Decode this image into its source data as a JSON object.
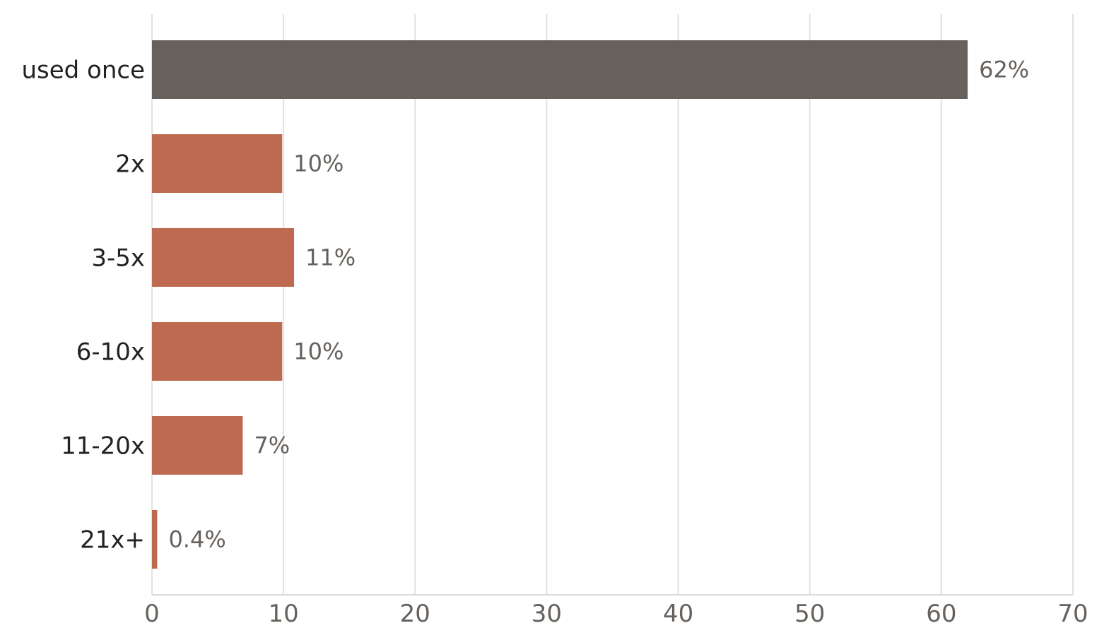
{
  "chart_data": {
    "type": "bar",
    "orientation": "horizontal",
    "title": "",
    "xlabel": "",
    "ylabel": "",
    "categories": [
      "used once",
      "2x",
      "3-5x",
      "6-10x",
      "11-20x",
      "21x+"
    ],
    "values": [
      62,
      9.9,
      10.8,
      9.9,
      6.9,
      0.4
    ],
    "data_labels": [
      "62%",
      "10%",
      "11%",
      "10%",
      "7%",
      "0.4%"
    ],
    "bar_colors": [
      "#66615c",
      "#be6a50",
      "#be6a50",
      "#be6a50",
      "#be6a50",
      "#be6a50"
    ],
    "xlim": [
      0,
      70
    ],
    "xticks": [
      0,
      10,
      20,
      30,
      40,
      50,
      60,
      70
    ],
    "xtick_labels": [
      "0",
      "10",
      "20",
      "30",
      "40",
      "50",
      "60",
      "70"
    ],
    "grid": "vertical",
    "legend": "none"
  }
}
